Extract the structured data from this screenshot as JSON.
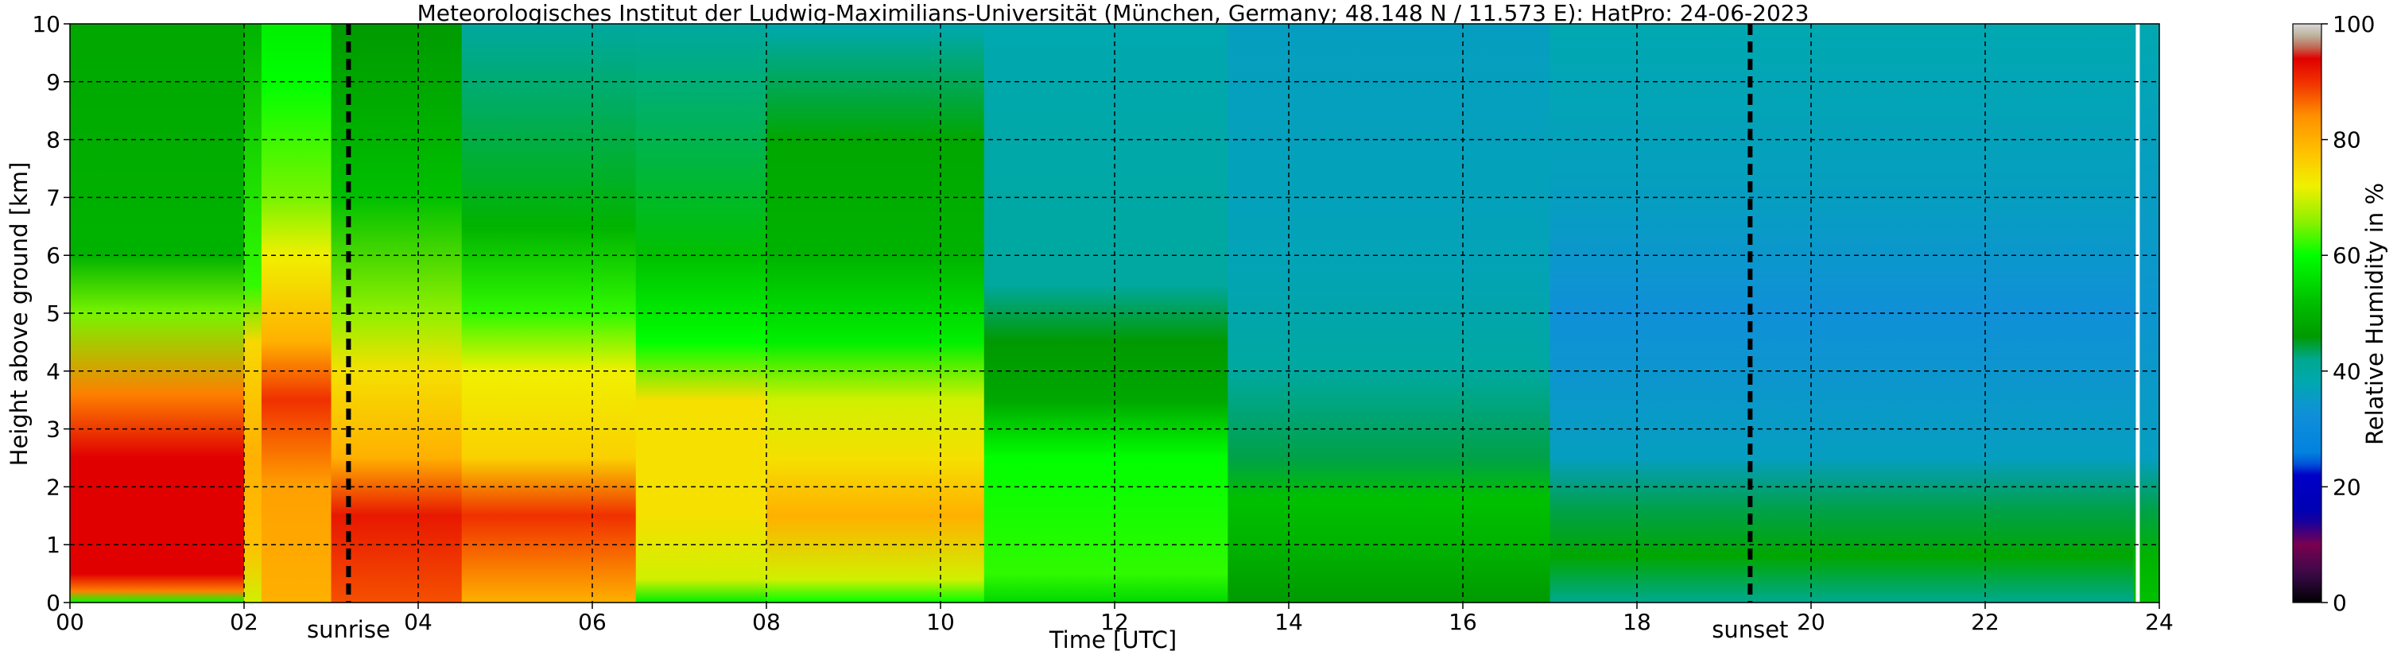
{
  "chart_data": {
    "type": "heatmap",
    "title": "Meteorologisches Institut der Ludwig-Maximilians-Universität (München, Germany; 48.148 N / 11.573 E):    HatPro: 24-06-2023",
    "xlabel": "Time [UTC]",
    "ylabel": "Height above ground [km]",
    "xlim": [
      0,
      24
    ],
    "ylim": [
      0,
      10
    ],
    "x_ticks": [
      "00",
      "02",
      "04",
      "06",
      "08",
      "10",
      "12",
      "14",
      "16",
      "18",
      "20",
      "22",
      "24"
    ],
    "y_ticks": [
      "0",
      "1",
      "2",
      "3",
      "4",
      "5",
      "6",
      "7",
      "8",
      "9",
      "10"
    ],
    "grid": true,
    "colorbar": {
      "label": "Relative Humidity in %",
      "range": [
        0,
        100
      ],
      "ticks": [
        "0",
        "20",
        "40",
        "60",
        "80",
        "100"
      ],
      "colors": [
        "#000000",
        "#3a0a4a",
        "#7a0050",
        "#0000b0",
        "#0080e0",
        "#00a8b0",
        "#009a00",
        "#00ff00",
        "#f0f000",
        "#ff9000",
        "#e00000",
        "#b0a080",
        "#d8d8d8"
      ]
    },
    "annotations": [
      {
        "text": "sunrise",
        "x": 3.2
      },
      {
        "text": "sunset",
        "x": 19.3
      }
    ],
    "rh_columns": [
      {
        "t0": 0.0,
        "t1": 2.0,
        "stops": [
          [
            0,
            60
          ],
          [
            0.2,
            85
          ],
          [
            0.5,
            94
          ],
          [
            2.5,
            94
          ],
          [
            3.6,
            85
          ],
          [
            5.0,
            65
          ],
          [
            6.0,
            50
          ],
          [
            10,
            48
          ]
        ]
      },
      {
        "t0": 2.0,
        "t1": 2.2,
        "stops": [
          [
            0,
            70
          ],
          [
            1.0,
            78
          ],
          [
            2.5,
            80
          ],
          [
            4.5,
            75
          ],
          [
            5.5,
            62
          ],
          [
            10,
            50
          ]
        ]
      },
      {
        "t0": 2.2,
        "t1": 3.0,
        "stops": [
          [
            0,
            80
          ],
          [
            2.0,
            82
          ],
          [
            3.5,
            90
          ],
          [
            4.5,
            80
          ],
          [
            6.0,
            72
          ],
          [
            7.0,
            65
          ],
          [
            9.0,
            60
          ],
          [
            10,
            58
          ]
        ]
      },
      {
        "t0": 3.0,
        "t1": 4.5,
        "stops": [
          [
            0,
            88
          ],
          [
            1.5,
            92
          ],
          [
            2.5,
            80
          ],
          [
            4.0,
            74
          ],
          [
            5.0,
            66
          ],
          [
            7.0,
            52
          ],
          [
            10,
            46
          ]
        ]
      },
      {
        "t0": 4.5,
        "t1": 6.5,
        "stops": [
          [
            0,
            80
          ],
          [
            1.5,
            90
          ],
          [
            2.5,
            76
          ],
          [
            4.0,
            72
          ],
          [
            5.0,
            62
          ],
          [
            6.5,
            50
          ],
          [
            10,
            40
          ]
        ]
      },
      {
        "t0": 6.5,
        "t1": 8.0,
        "stops": [
          [
            0,
            58
          ],
          [
            0.4,
            70
          ],
          [
            1.5,
            74
          ],
          [
            3.5,
            74
          ],
          [
            4.5,
            60
          ],
          [
            6.0,
            52
          ],
          [
            10,
            40
          ]
        ]
      },
      {
        "t0": 8.0,
        "t1": 10.5,
        "stops": [
          [
            0,
            60
          ],
          [
            0.4,
            70
          ],
          [
            1.5,
            80
          ],
          [
            2.5,
            74
          ],
          [
            3.5,
            70
          ],
          [
            4.5,
            58
          ],
          [
            6.0,
            50
          ],
          [
            8.0,
            48
          ],
          [
            10,
            38
          ]
        ]
      },
      {
        "t0": 10.5,
        "t1": 13.3,
        "stops": [
          [
            0,
            55
          ],
          [
            0.5,
            62
          ],
          [
            2.5,
            60
          ],
          [
            3.5,
            48
          ],
          [
            4.5,
            46
          ],
          [
            5.5,
            40
          ],
          [
            10,
            38
          ]
        ]
      },
      {
        "t0": 13.3,
        "t1": 17.0,
        "stops": [
          [
            0,
            46
          ],
          [
            1.0,
            50
          ],
          [
            1.8,
            52
          ],
          [
            2.5,
            44
          ],
          [
            4.0,
            40
          ],
          [
            6.0,
            37
          ],
          [
            10,
            36
          ]
        ]
      },
      {
        "t0": 17.0,
        "t1": 23.7,
        "stops": [
          [
            0,
            42
          ],
          [
            0.8,
            48
          ],
          [
            1.6,
            44
          ],
          [
            2.5,
            36
          ],
          [
            5.0,
            33
          ],
          [
            7.0,
            36
          ],
          [
            10,
            38
          ]
        ]
      },
      {
        "t0": 23.7,
        "t1": 24.0,
        "stops": [
          [
            0,
            52
          ],
          [
            0.8,
            50
          ],
          [
            1.6,
            44
          ],
          [
            2.5,
            36
          ],
          [
            5.0,
            34
          ],
          [
            10,
            38
          ]
        ]
      }
    ]
  }
}
